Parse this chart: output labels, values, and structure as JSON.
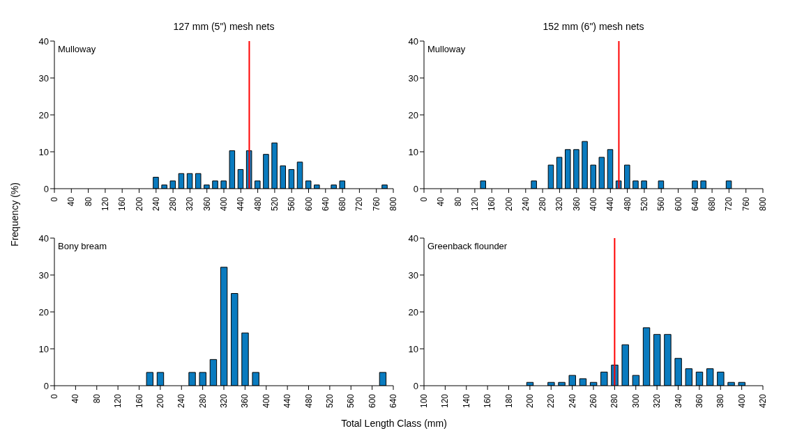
{
  "chart_data": [
    {
      "type": "bar",
      "title": "127 mm (5\") mesh nets",
      "ylabel": "Frequency (%)",
      "annotations": [
        "Mulloway"
      ],
      "x": [
        240,
        260,
        280,
        300,
        320,
        340,
        360,
        380,
        400,
        420,
        440,
        460,
        480,
        500,
        520,
        540,
        560,
        580,
        600,
        620,
        660,
        680,
        780
      ],
      "values": [
        3.1,
        1,
        2.1,
        4.1,
        4.1,
        4.1,
        1,
        2.1,
        2.1,
        10.3,
        5.2,
        10.3,
        2.1,
        9.3,
        12.4,
        6.2,
        5.2,
        7.2,
        2.1,
        1,
        1,
        2.1,
        1
      ],
      "color": "#0a7bbf",
      "xlim": [
        0,
        800
      ],
      "xticks": [
        0,
        40,
        80,
        120,
        160,
        200,
        240,
        280,
        320,
        360,
        400,
        440,
        480,
        520,
        560,
        600,
        640,
        680,
        720,
        760,
        800
      ],
      "ylim": [
        0,
        40
      ],
      "yticks": [
        0,
        10,
        20,
        30,
        40
      ],
      "ref_lines": [
        {
          "axis": "x",
          "value": 460,
          "color": "#ff0000"
        }
      ]
    },
    {
      "type": "bar",
      "title": "152 mm (6\") mesh nets",
      "annotations": [
        "Mulloway"
      ],
      "x": [
        140,
        260,
        300,
        320,
        340,
        360,
        380,
        400,
        420,
        440,
        460,
        480,
        500,
        520,
        560,
        640,
        660,
        720
      ],
      "values": [
        2.1,
        2.1,
        6.4,
        8.5,
        10.6,
        10.6,
        12.8,
        6.4,
        8.5,
        10.6,
        2.1,
        6.4,
        2.1,
        2.1,
        2.1,
        2.1,
        2.1,
        2.1
      ],
      "color": "#0a7bbf",
      "xlim": [
        0,
        800
      ],
      "xticks": [
        0,
        40,
        80,
        120,
        160,
        200,
        240,
        280,
        320,
        360,
        400,
        440,
        480,
        520,
        560,
        600,
        640,
        680,
        720,
        760,
        800
      ],
      "ylim": [
        0,
        40
      ],
      "yticks": [
        0,
        10,
        20,
        30,
        40
      ],
      "ref_lines": [
        {
          "axis": "x",
          "value": 460,
          "color": "#ff0000"
        }
      ]
    },
    {
      "type": "bar",
      "xlabel": "Total Length Class (mm)",
      "annotations": [
        "Bony bream"
      ],
      "x": [
        180,
        200,
        260,
        280,
        300,
        320,
        340,
        360,
        380,
        620
      ],
      "values": [
        3.6,
        3.6,
        3.6,
        3.6,
        7.1,
        32.1,
        25,
        14.3,
        3.6,
        3.6
      ],
      "color": "#0a7bbf",
      "xlim": [
        0,
        640
      ],
      "xticks": [
        0,
        40,
        80,
        120,
        160,
        200,
        240,
        280,
        320,
        360,
        400,
        440,
        480,
        520,
        560,
        600,
        640
      ],
      "ylim": [
        0,
        40
      ],
      "yticks": [
        0,
        10,
        20,
        30,
        40
      ]
    },
    {
      "type": "bar",
      "annotations": [
        "Greenback flounder"
      ],
      "x": [
        200,
        220,
        230,
        240,
        250,
        260,
        270,
        280,
        290,
        300,
        310,
        320,
        330,
        340,
        350,
        360,
        370,
        380,
        390,
        400
      ],
      "values": [
        0.9,
        0.9,
        0.9,
        2.8,
        1.9,
        0.9,
        3.7,
        5.6,
        11.1,
        2.8,
        15.7,
        13.9,
        13.9,
        7.4,
        4.6,
        3.7,
        4.6,
        3.7,
        0.9,
        0.9
      ],
      "color": "#0a7bbf",
      "xlim": [
        100,
        420
      ],
      "xticks": [
        100,
        120,
        140,
        160,
        180,
        200,
        220,
        240,
        260,
        280,
        300,
        320,
        340,
        360,
        380,
        400,
        420
      ],
      "ylim": [
        0,
        40
      ],
      "yticks": [
        0,
        10,
        20,
        30,
        40
      ],
      "ref_lines": [
        {
          "axis": "x",
          "value": 280,
          "color": "#ff0000"
        }
      ]
    }
  ]
}
